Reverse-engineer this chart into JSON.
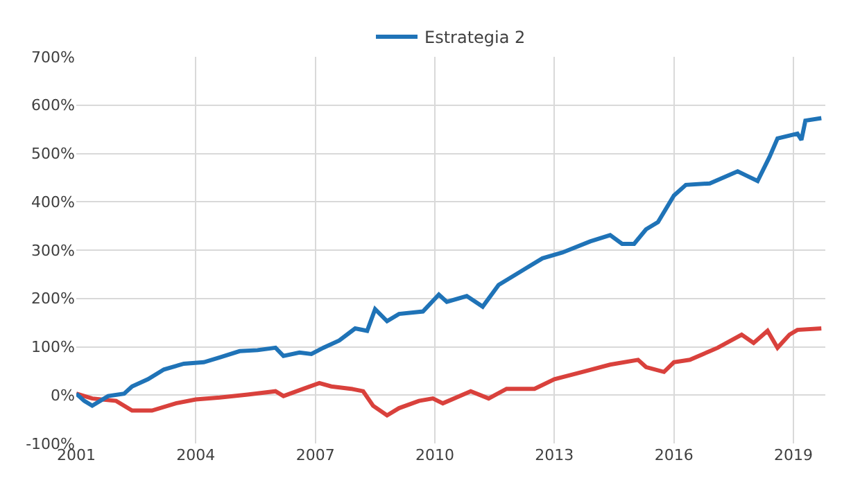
{
  "chart_data": {
    "type": "line",
    "legend": "top",
    "grid": true,
    "xlim": [
      2001,
      2019.8
    ],
    "xticks": [
      2001,
      2004,
      2007,
      2010,
      2013,
      2016,
      2019
    ],
    "ylim": [
      -100,
      700
    ],
    "yticks": [
      {
        "value": -100,
        "label": "-100%"
      },
      {
        "value": 0,
        "label": "0%"
      },
      {
        "value": 100,
        "label": "100%"
      },
      {
        "value": 200,
        "label": "200%"
      },
      {
        "value": 300,
        "label": "300%"
      },
      {
        "value": 400,
        "label": "400%"
      },
      {
        "value": 500,
        "label": "500%"
      },
      {
        "value": 600,
        "label": "600%"
      },
      {
        "value": 700,
        "label": "700%"
      }
    ],
    "series": [
      {
        "color": "#d9413c",
        "x": [
          2001,
          2001.4,
          2002,
          2002.4,
          2002.9,
          2003.5,
          2004,
          2004.6,
          2005.3,
          2006,
          2006.2,
          2006.7,
          2007.1,
          2007.4,
          2007.9,
          2008.2,
          2008.45,
          2008.8,
          2009.1,
          2009.6,
          2009.95,
          2010.2,
          2010.9,
          2011.35,
          2011.8,
          2012.5,
          2013,
          2013.7,
          2014.4,
          2015.1,
          2015.3,
          2015.75,
          2016,
          2016.4,
          2017.1,
          2017.7,
          2018,
          2018.35,
          2018.6,
          2018.9,
          2019.1,
          2019.7
        ],
        "values": [
          3,
          -7,
          -12,
          -32,
          -32,
          -17,
          -9,
          -5,
          1,
          8,
          -2,
          13,
          25,
          18,
          13,
          8,
          -22,
          -42,
          -27,
          -12,
          -7,
          -17,
          8,
          -7,
          13,
          13,
          33,
          48,
          63,
          73,
          58,
          48,
          68,
          73,
          98,
          125,
          108,
          133,
          98,
          125,
          135,
          138
        ]
      },
      {
        "name": "Estrategia 2",
        "color": "#1f73b7",
        "x": [
          2001,
          2001.2,
          2001.4,
          2001.8,
          2002.2,
          2002.4,
          2002.8,
          2003.2,
          2003.7,
          2004.2,
          2004.6,
          2005.1,
          2005.55,
          2006,
          2006.2,
          2006.6,
          2006.9,
          2007.2,
          2007.6,
          2008,
          2008.3,
          2008.5,
          2008.8,
          2009.1,
          2009.7,
          2010.1,
          2010.3,
          2010.8,
          2011.2,
          2011.6,
          2012.2,
          2012.7,
          2013.2,
          2013.9,
          2014.4,
          2014.7,
          2015,
          2015.3,
          2015.6,
          2016,
          2016.3,
          2016.9,
          2017.6,
          2017.8,
          2018.1,
          2018.4,
          2018.6,
          2019.1,
          2019.2,
          2019.3,
          2019.7
        ],
        "values": [
          3,
          -12,
          -22,
          -2,
          3,
          18,
          33,
          53,
          65,
          68,
          78,
          91,
          93,
          98,
          81,
          88,
          85,
          98,
          113,
          138,
          133,
          178,
          153,
          168,
          173,
          208,
          193,
          205,
          183,
          228,
          258,
          283,
          295,
          318,
          331,
          313,
          313,
          343,
          358,
          413,
          435,
          438,
          463,
          455,
          443,
          493,
          531,
          541,
          528,
          568,
          573
        ]
      }
    ]
  }
}
